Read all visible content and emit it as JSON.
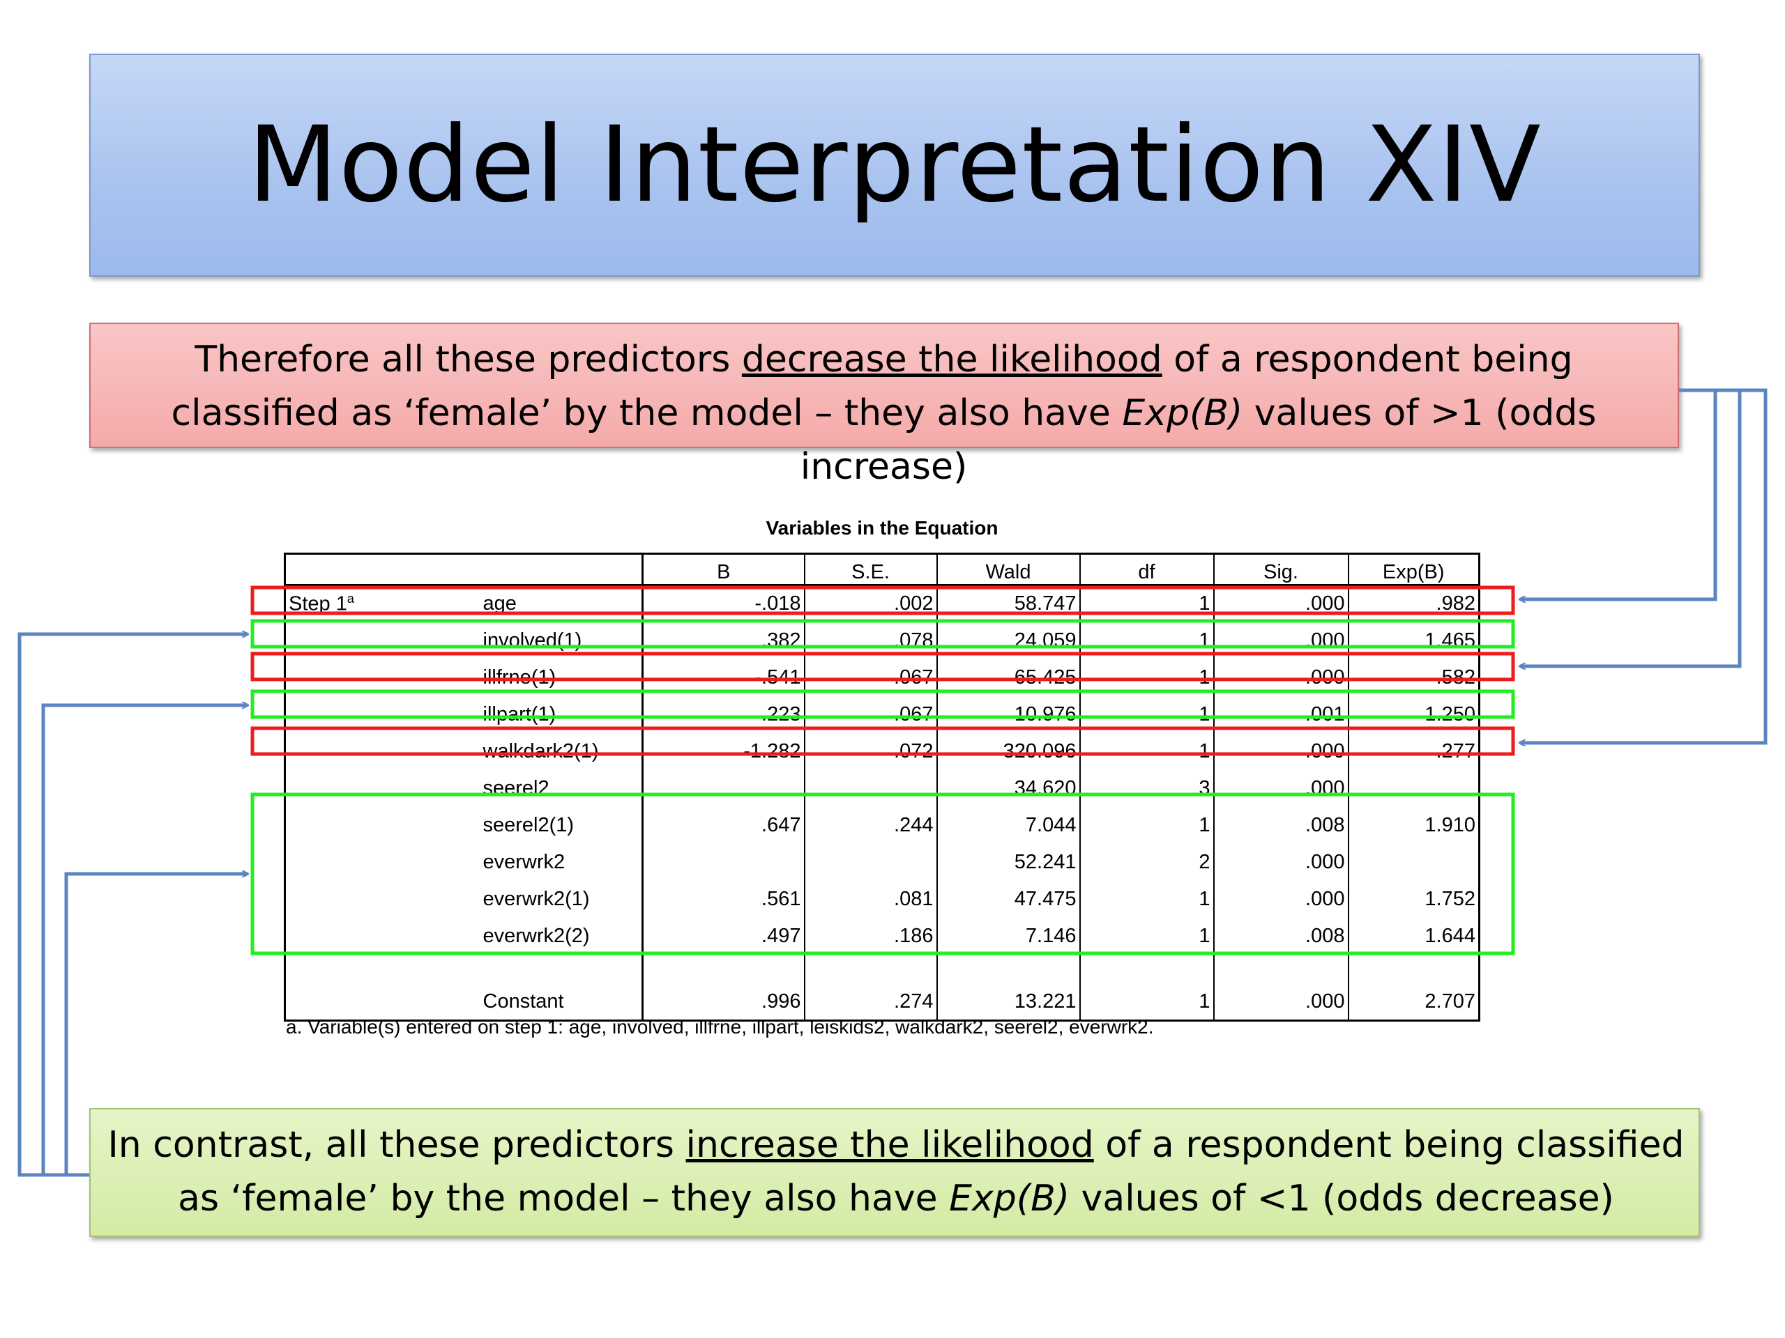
{
  "slide": {
    "title": "Model Interpretation XIV"
  },
  "red_callout": {
    "part1": "Therefore all these predictors ",
    "underlined": "decrease the likelihood",
    "part2": " of a respondent being classified as ‘female’ by the model – they also have ",
    "italic": "Exp(B)",
    "part3": " values of >1 (odds increase)"
  },
  "green_callout": {
    "part1": "In contrast, all these predictors ",
    "underlined": "increase the likelihood",
    "part2": " of a respondent being classified as ‘female’ by the model – they also have ",
    "italic": "Exp(B)",
    "part3": " values of <1 (odds decrease)"
  },
  "table": {
    "title": "Variables in the Equation",
    "headers": [
      "",
      "",
      "B",
      "S.E.",
      "Wald",
      "df",
      "Sig.",
      "Exp(B)"
    ],
    "step_label": "Step 1",
    "step_superscript": "a",
    "rows": [
      {
        "name": "age",
        "B": "-.018",
        "SE": ".002",
        "Wald": "58.747",
        "df": "1",
        "Sig": ".000",
        "ExpB": ".982"
      },
      {
        "name": "involved(1)",
        "B": ".382",
        "SE": ".078",
        "Wald": "24.059",
        "df": "1",
        "Sig": ".000",
        "ExpB": "1.465"
      },
      {
        "name": "illfrne(1)",
        "B": "-.541",
        "SE": ".067",
        "Wald": "65.425",
        "df": "1",
        "Sig": ".000",
        "ExpB": ".582"
      },
      {
        "name": "illpart(1)",
        "B": ".223",
        "SE": ".067",
        "Wald": "10.976",
        "df": "1",
        "Sig": ".001",
        "ExpB": "1.250"
      },
      {
        "name": "walkdark2(1)",
        "B": "-1.282",
        "SE": ".072",
        "Wald": "320.096",
        "df": "1",
        "Sig": ".000",
        "ExpB": ".277"
      },
      {
        "name": "seerel2",
        "B": "",
        "SE": "",
        "Wald": "34.620",
        "df": "3",
        "Sig": ".000",
        "ExpB": ""
      },
      {
        "name": "seerel2(1)",
        "B": ".647",
        "SE": ".244",
        "Wald": "7.044",
        "df": "1",
        "Sig": ".008",
        "ExpB": "1.910"
      },
      {
        "name": "everwrk2",
        "B": "",
        "SE": "",
        "Wald": "52.241",
        "df": "2",
        "Sig": ".000",
        "ExpB": ""
      },
      {
        "name": "everwrk2(1)",
        "B": ".561",
        "SE": ".081",
        "Wald": "47.475",
        "df": "1",
        "Sig": ".000",
        "ExpB": "1.752"
      },
      {
        "name": "everwrk2(2)",
        "B": ".497",
        "SE": ".186",
        "Wald": "7.146",
        "df": "1",
        "Sig": ".008",
        "ExpB": "1.644"
      }
    ],
    "constant": {
      "name": "Constant",
      "B": ".996",
      "SE": ".274",
      "Wald": "13.221",
      "df": "1",
      "Sig": ".000",
      "ExpB": "2.707"
    },
    "footnote": "a. Variable(s) entered on step 1: age, involved, illfrne, illpart, leiskids2, walkdark2, seerel2, everwrk2."
  },
  "colors": {
    "red_highlight": "#ee1c1c",
    "green_highlight": "#22ee22",
    "arrow": "#5b84c0"
  }
}
